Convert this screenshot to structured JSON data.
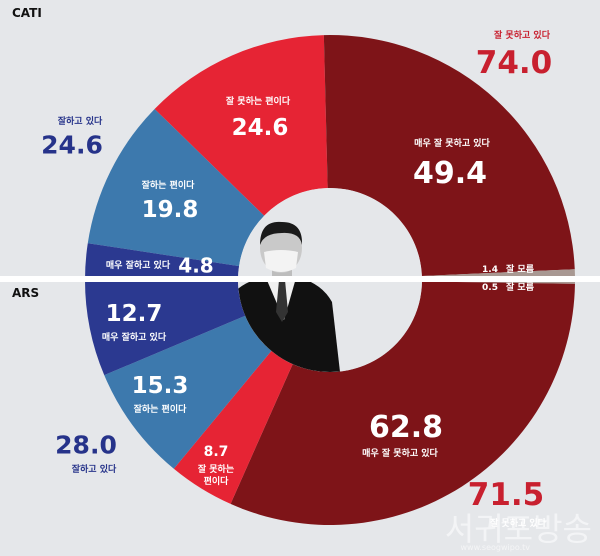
{
  "chart_data": [
    {
      "type": "pie",
      "panel": "CATI",
      "categories": [
        "잘 못하는 편이다",
        "매우 잘 못하고 있다",
        "잘 모름",
        "매우 잘하고 있다",
        "잘하는 편이다"
      ],
      "values": [
        24.6,
        49.4,
        1.4,
        4.8,
        19.8
      ],
      "colors": [
        "#e62434",
        "#7e1418",
        "#a89892",
        "#2b3990",
        "#3d79ad"
      ],
      "totals": [
        {
          "label": "잘 못하고 있다",
          "value": "74.0"
        },
        {
          "label": "잘하고 있다",
          "value": "24.6"
        }
      ]
    },
    {
      "type": "pie",
      "panel": "ARS",
      "categories": [
        "잘 모름",
        "매우 잘 못하고 있다",
        "잘 못하는 편이다",
        "잘하는 편이다",
        "매우 잘하고 있다"
      ],
      "values": [
        0.5,
        62.8,
        8.7,
        15.3,
        12.7
      ],
      "colors": [
        "#a89892",
        "#7e1418",
        "#e62434",
        "#3d79ad",
        "#2b3990"
      ],
      "totals": [
        {
          "label": "잘 못하고 있다",
          "value": "71.5"
        },
        {
          "label": "잘하고 있다",
          "value": "28.0"
        }
      ]
    }
  ],
  "labels": {
    "cati_title": "CATI",
    "ars_title": "ARS",
    "cati_bad_total_label": "잘 못하고 있다",
    "cati_bad_total_value": "74.0",
    "cati_good_total_label": "잘하고 있다",
    "cati_good_total_value": "24.6",
    "cati_s1_label": "잘 못하는 편이다",
    "cati_s1_value": "24.6",
    "cati_s2_label": "매우 잘 못하고 있다",
    "cati_s2_value": "49.4",
    "cati_s3_value": "1.4",
    "cati_s3_label": "잘 모름",
    "cati_s4_label": "매우 잘하고 있다",
    "cati_s4_value": "4.8",
    "cati_s5_label": "잘하는 편이다",
    "cati_s5_value": "19.8",
    "ars_s1_value": "0.5",
    "ars_s1_label": "잘 모름",
    "ars_s2_value": "62.8",
    "ars_s2_label": "매우 잘 못하고 있다",
    "ars_s3_value": "8.7",
    "ars_s3_label_1": "잘 못하는",
    "ars_s3_label_2": "편이다",
    "ars_s4_value": "15.3",
    "ars_s4_label": "잘하는 편이다",
    "ars_s5_value": "12.7",
    "ars_s5_label": "매우 잘하고 있다",
    "ars_bad_total_label": "잘 못하고 있다",
    "ars_bad_total_value": "71.5",
    "ars_good_total_label": "잘하고 있다",
    "ars_good_total_value": "28.0",
    "watermark": "서귀포방송",
    "watermark_url": "www.seogwipo.tv"
  }
}
